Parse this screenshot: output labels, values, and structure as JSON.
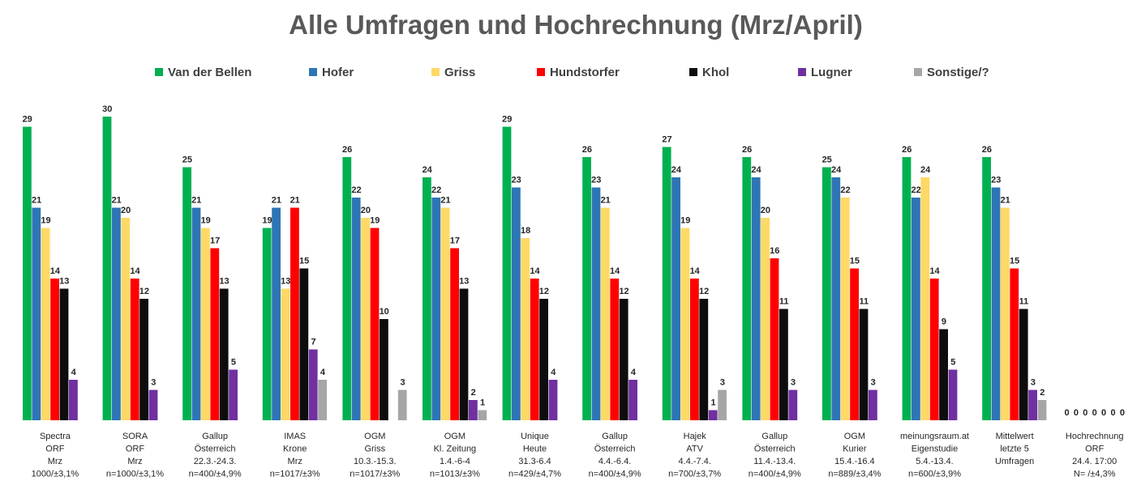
{
  "chart_data": {
    "type": "bar",
    "title": "Alle Umfragen und Hochrechnung (Mrz/April)",
    "xlabel": "",
    "ylabel": "",
    "ylim": [
      0,
      31
    ],
    "grid": false,
    "legend_position": "top",
    "categories": [
      [
        "Spectra",
        "ORF",
        "Mrz",
        "1000/±3,1%"
      ],
      [
        "SORA",
        "ORF",
        "Mrz",
        "n=1000/±3,1%"
      ],
      [
        "Gallup",
        "Österreich",
        "22.3.-24.3.",
        "n=400/±4,9%"
      ],
      [
        "IMAS",
        "Krone",
        "Mrz",
        "n=1017/±3%"
      ],
      [
        "OGM",
        "Griss",
        "10.3.-15.3.",
        "n=1017/±3%"
      ],
      [
        "OGM",
        "Kl. Zeitung",
        "1.4.-6-4",
        "n=1013/±3%"
      ],
      [
        "Unique",
        "Heute",
        "31.3-6.4",
        "n=429/±4,7%"
      ],
      [
        "Gallup",
        "Österreich",
        "4.4.-6.4.",
        "n=400/±4,9%"
      ],
      [
        "Hajek",
        "ATV",
        "4.4.-7.4.",
        "n=700/±3,7%"
      ],
      [
        "Gallup",
        "Österreich",
        "11.4.-13.4.",
        "n=400/±4,9%"
      ],
      [
        "OGM",
        "Kurier",
        "15.4.-16.4",
        "n=889/±3,4%"
      ],
      [
        "meinungsraum.at",
        "Eigenstudie",
        "5.4.-13.4.",
        "n=600/±3,9%"
      ],
      [
        "Mittelwert",
        "letzte 5",
        "Umfragen",
        ""
      ],
      [
        "Hochrechnung",
        "ORF",
        "24.4. 17:00",
        "N=   /±4,3%"
      ]
    ],
    "series": [
      {
        "name": "Van der Bellen",
        "color": "#00B050",
        "values": [
          29,
          30,
          25,
          19,
          26,
          24,
          29,
          26,
          27,
          26,
          25,
          26,
          26,
          0
        ]
      },
      {
        "name": "Hofer",
        "color": "#2E75B6",
        "values": [
          21,
          21,
          21,
          21,
          22,
          22,
          23,
          23,
          24,
          24,
          24,
          22,
          23,
          0
        ]
      },
      {
        "name": "Griss",
        "color": "#FFD966",
        "values": [
          19,
          20,
          19,
          13,
          20,
          21,
          18,
          21,
          19,
          20,
          22,
          24,
          21,
          0
        ]
      },
      {
        "name": "Hundstorfer",
        "color": "#FF0000",
        "values": [
          14,
          14,
          17,
          21,
          19,
          17,
          14,
          14,
          14,
          16,
          15,
          14,
          15,
          0
        ]
      },
      {
        "name": "Khol",
        "color": "#0D0D0D",
        "values": [
          13,
          12,
          13,
          15,
          10,
          13,
          12,
          12,
          12,
          11,
          11,
          9,
          11,
          0
        ]
      },
      {
        "name": "Lugner",
        "color": "#7030A0",
        "values": [
          4,
          3,
          5,
          7,
          null,
          2,
          4,
          4,
          1,
          3,
          3,
          5,
          3,
          0
        ]
      },
      {
        "name": "Sonstige/?",
        "color": "#A6A6A6",
        "values": [
          null,
          null,
          null,
          4,
          3,
          1,
          null,
          null,
          3,
          null,
          null,
          null,
          2,
          0
        ]
      }
    ]
  }
}
